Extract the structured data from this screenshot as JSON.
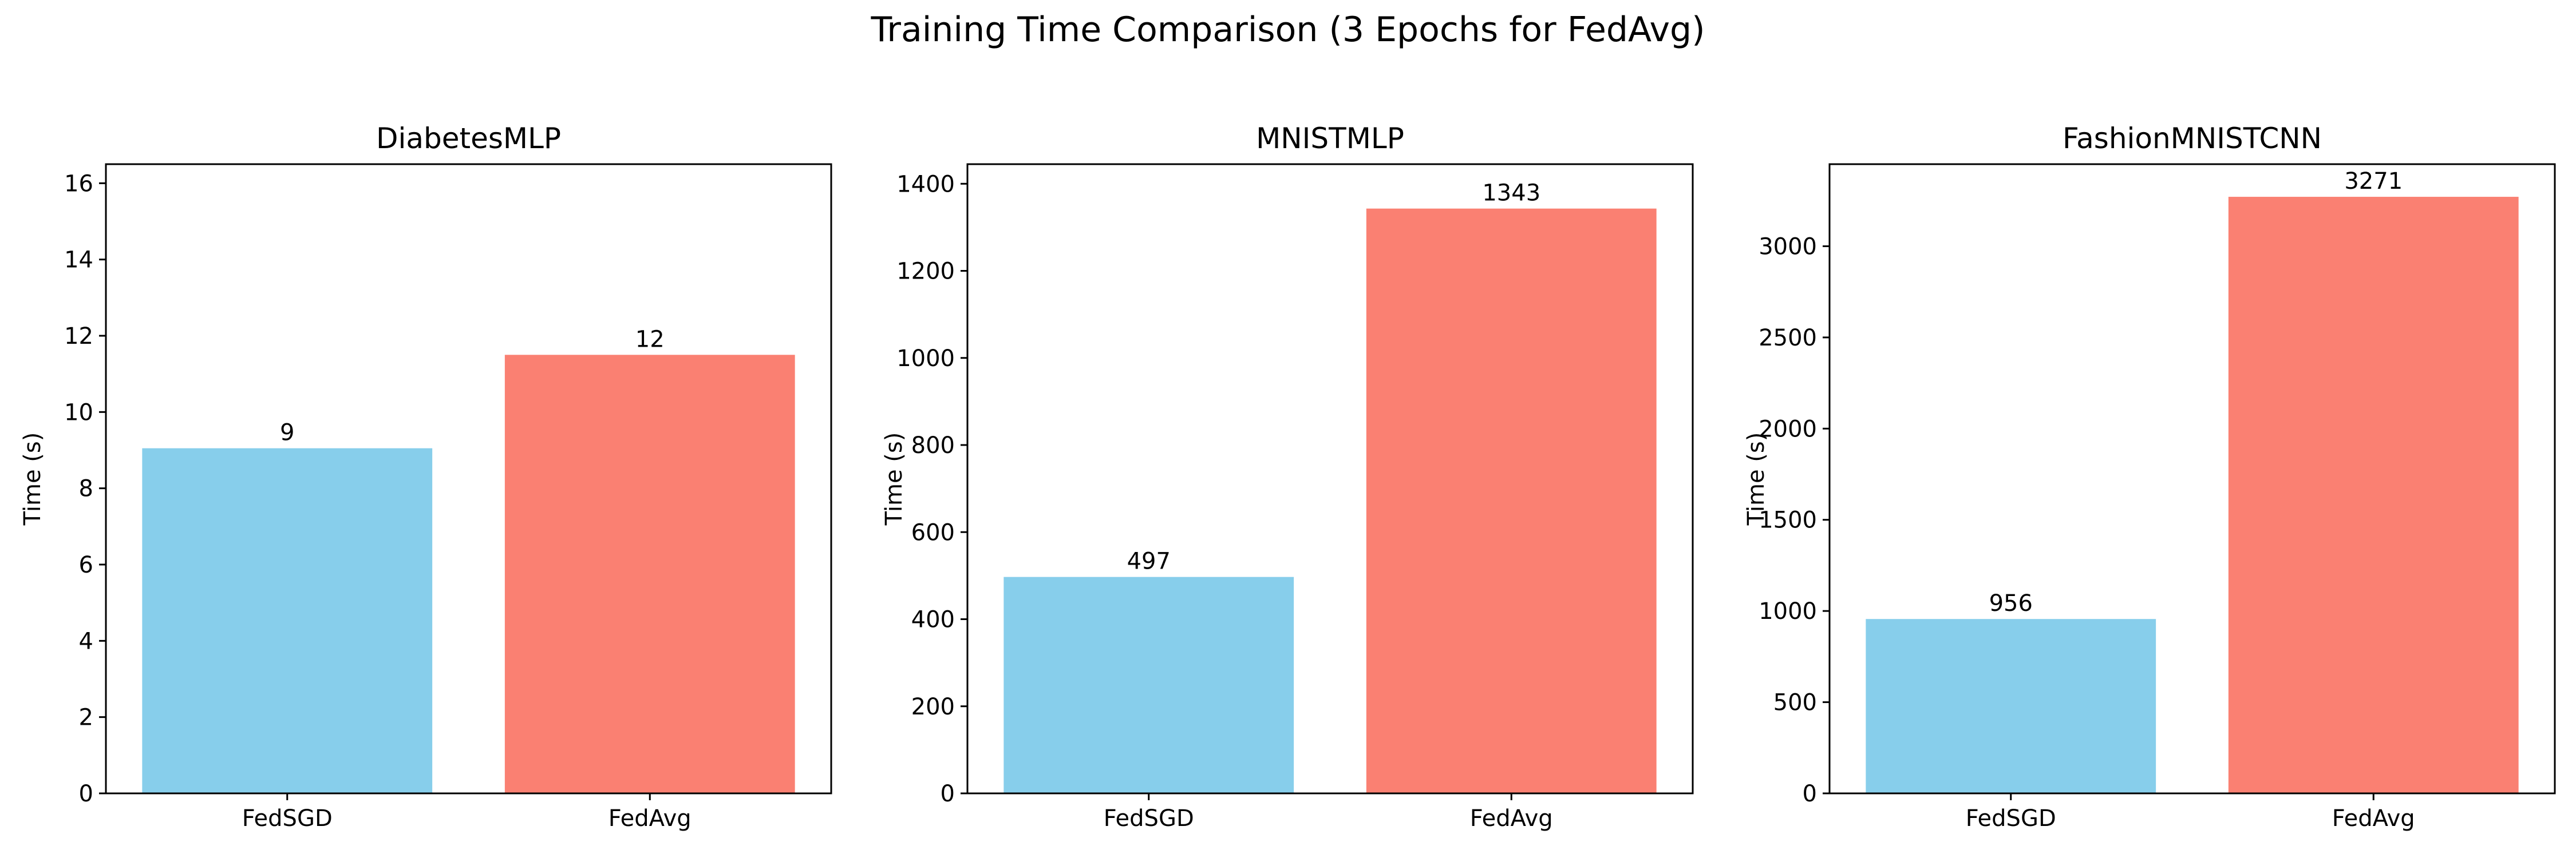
{
  "suptitle": "Training Time Comparison (3 Epochs for FedAvg)",
  "colors": {
    "FedSGD": "#87CEEB",
    "FedAvg": "#FA8072"
  },
  "chart_data": [
    {
      "type": "bar",
      "title": "DiabetesMLP",
      "xlabel": "",
      "ylabel": "Time (s)",
      "categories": [
        "FedSGD",
        "FedAvg"
      ],
      "values": [
        9.05,
        11.5
      ],
      "labels": [
        "9",
        "12"
      ],
      "ylim": [
        0,
        16.5
      ],
      "yticks": [
        0,
        2,
        4,
        6,
        8,
        10,
        12,
        14,
        16
      ]
    },
    {
      "type": "bar",
      "title": "MNISTMLP",
      "xlabel": "",
      "ylabel": "Time (s)",
      "categories": [
        "FedSGD",
        "FedAvg"
      ],
      "values": [
        497,
        1343
      ],
      "labels": [
        "497",
        "1343"
      ],
      "ylim": [
        0,
        1445
      ],
      "yticks": [
        0,
        200,
        400,
        600,
        800,
        1000,
        1200,
        1400
      ]
    },
    {
      "type": "bar",
      "title": "FashionMNISTCNN",
      "xlabel": "",
      "ylabel": "Time (s)",
      "categories": [
        "FedSGD",
        "FedAvg"
      ],
      "values": [
        956,
        3271
      ],
      "labels": [
        "956",
        "3271"
      ],
      "ylim": [
        0,
        3450
      ],
      "yticks": [
        0,
        500,
        1000,
        1500,
        2000,
        2500,
        3000
      ]
    }
  ]
}
